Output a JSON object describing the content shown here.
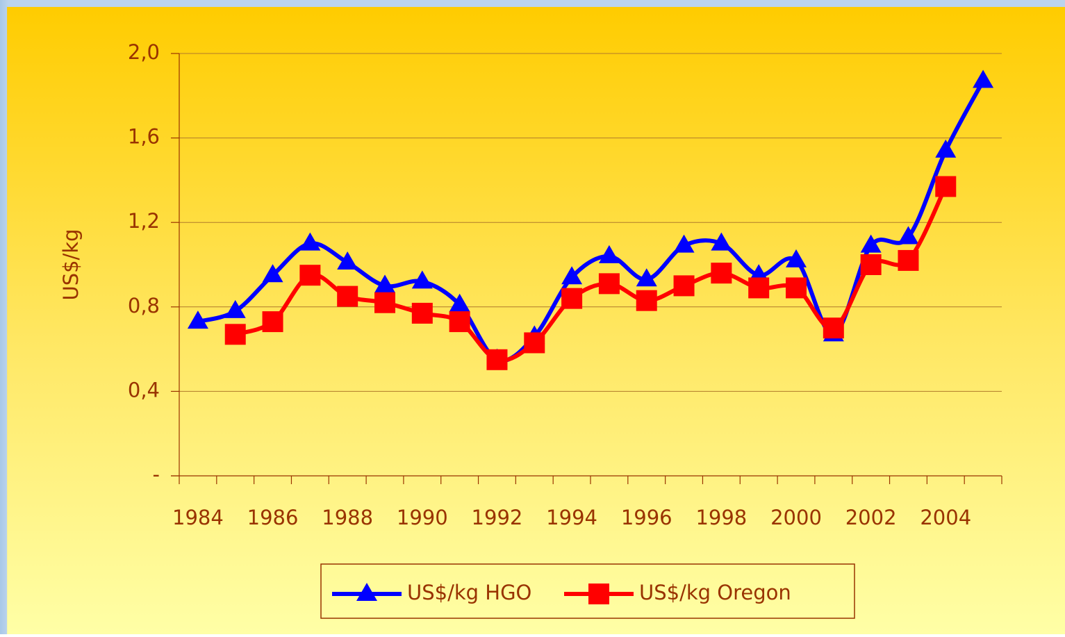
{
  "chart_data": {
    "type": "line",
    "y_label": "US$/kg",
    "categories": [
      "1984",
      null,
      "1986",
      null,
      "1988",
      null,
      "1990",
      null,
      "1992",
      null,
      "1994",
      null,
      "1996",
      null,
      "1998",
      null,
      "2000",
      null,
      "2002",
      null,
      "2004",
      null
    ],
    "series": [
      {
        "name": "US$/kg HGO",
        "color": "#0000ff",
        "marker": "triangle",
        "values": [
          0.73,
          0.78,
          0.95,
          1.1,
          1.01,
          0.9,
          0.92,
          0.81,
          0.55,
          0.66,
          0.94,
          1.04,
          0.93,
          1.09,
          1.1,
          0.95,
          1.02,
          0.67,
          1.09,
          1.13,
          1.54,
          1.87
        ]
      },
      {
        "name": "US$/kg Oregon",
        "color": "#ff0000",
        "marker": "square",
        "values": [
          null,
          0.67,
          0.73,
          0.95,
          0.85,
          0.82,
          0.77,
          0.73,
          0.55,
          0.63,
          0.84,
          0.91,
          0.83,
          0.9,
          0.96,
          0.89,
          0.89,
          0.7,
          1.0,
          1.02,
          1.37,
          null
        ]
      }
    ],
    "ylim": [
      0,
      2.0
    ],
    "yticks": [
      {
        "value": 0,
        "label": "-"
      },
      {
        "value": 0.4,
        "label": "0,4"
      },
      {
        "value": 0.8,
        "label": "0,8"
      },
      {
        "value": 1.2,
        "label": "1,2"
      },
      {
        "value": 1.6,
        "label": "1,6"
      },
      {
        "value": 2.0,
        "label": "2,0"
      }
    ],
    "grid": true
  }
}
